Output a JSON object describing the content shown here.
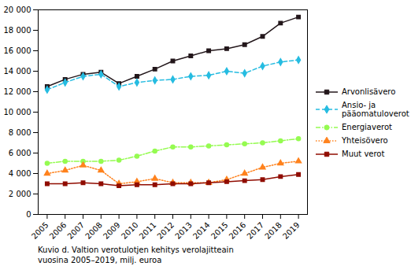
{
  "chart_data": {
    "type": "line",
    "caption": "Kuvio d. Valtion verotulotjen kehitys verolajitteain\nvuosina 2005–2019, milj. euroa",
    "x": [
      2005,
      2006,
      2007,
      2008,
      2009,
      2010,
      2011,
      2012,
      2013,
      2014,
      2015,
      2016,
      2017,
      2018,
      2019
    ],
    "xlim": [
      2004.5,
      2019.5
    ],
    "xticks": [
      2005,
      2006,
      2007,
      2008,
      2009,
      2010,
      2011,
      2012,
      2013,
      2014,
      2015,
      2016,
      2017,
      2018,
      2019
    ],
    "ylim": [
      0,
      20000
    ],
    "yticks": [
      0,
      {
        "value": 2000,
        "label": "2 000"
      },
      {
        "value": 4000,
        "label": "4 000"
      },
      {
        "value": 6000,
        "label": "6 000"
      },
      {
        "value": 8000,
        "label": "8 000"
      },
      {
        "value": 10000,
        "label": "10 000"
      },
      {
        "value": 12000,
        "label": "12 000"
      },
      {
        "value": 14000,
        "label": "14 000"
      },
      {
        "value": 16000,
        "label": "16 000"
      },
      {
        "value": 18000,
        "label": "18 000"
      },
      {
        "value": 20000,
        "label": "20 000"
      }
    ],
    "grid": false,
    "legend": "right",
    "series": [
      {
        "name": "Arvonlisävero",
        "line_style": "solid",
        "marker": "square",
        "values": [
          12500,
          13200,
          13700,
          13900,
          12800,
          13500,
          14200,
          15000,
          15500,
          16000,
          16200,
          16600,
          17400,
          18700,
          19300
        ]
      },
      {
        "name": "Ansio- ja\npääomatuloverot",
        "line_style": "dashed",
        "marker": "diamond",
        "values": [
          12200,
          12900,
          13500,
          13700,
          12500,
          12900,
          13100,
          13200,
          13500,
          13600,
          14000,
          13800,
          14500,
          14900,
          15100
        ]
      },
      {
        "name": "Energiaverot",
        "line_style": "dashdot",
        "marker": "circle",
        "values": [
          5000,
          5200,
          5200,
          5200,
          5300,
          5700,
          6200,
          6600,
          6600,
          6700,
          6800,
          6900,
          7000,
          7200,
          7400
        ]
      },
      {
        "name": "Yhteisövero",
        "line_style": "dotted",
        "marker": "triangle",
        "values": [
          4000,
          4300,
          4800,
          4300,
          3000,
          3200,
          3500,
          3100,
          3100,
          3100,
          3400,
          4000,
          4600,
          5000,
          5200
        ]
      },
      {
        "name": "Muut verot",
        "line_style": "solid",
        "marker": "square",
        "values": [
          3000,
          3000,
          3100,
          3000,
          2800,
          2900,
          2900,
          3000,
          3000,
          3100,
          3200,
          3300,
          3400,
          3700,
          3900
        ]
      }
    ]
  }
}
